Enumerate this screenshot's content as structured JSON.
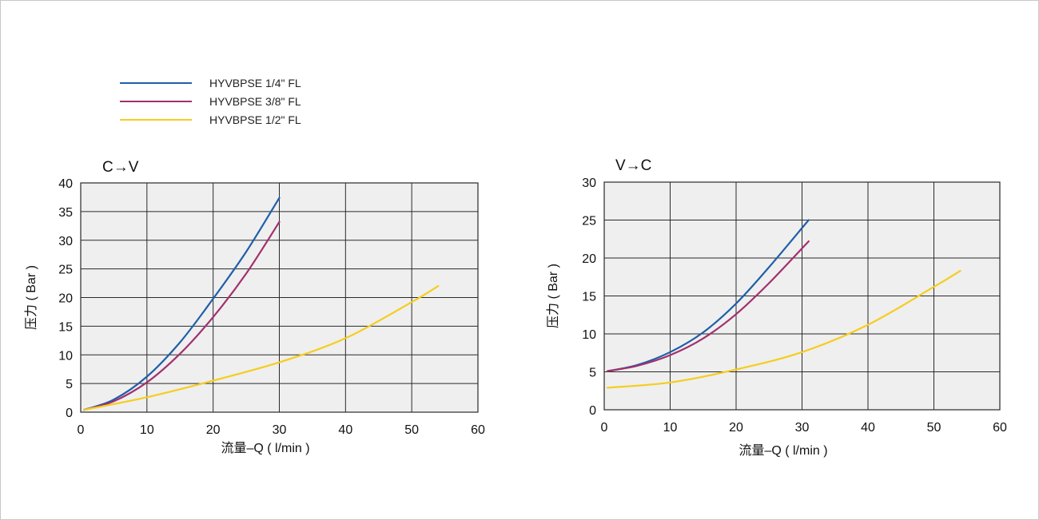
{
  "legend": [
    {
      "label": "HYVBPSE 1/4\" FL",
      "color": "#1f5fa8"
    },
    {
      "label": "HYVBPSE 3/8\" FL",
      "color": "#a2306e"
    },
    {
      "label": "HYVBPSE 1/2\" FL",
      "color": "#f5cd1e"
    }
  ],
  "chart_data": [
    {
      "type": "line",
      "title": "C→V",
      "xlabel": "流量–Q ( l/min )",
      "ylabel": "压力 ( Bar )",
      "xlim": [
        0,
        60
      ],
      "ylim": [
        0,
        40
      ],
      "x_ticks": [
        0,
        10,
        20,
        30,
        40,
        50,
        60
      ],
      "y_ticks": [
        0,
        5,
        10,
        15,
        20,
        25,
        30,
        35,
        40
      ],
      "grid": true,
      "series": [
        {
          "name": "HYVBPSE 1/4\" FL",
          "color": "#1f5fa8",
          "x": [
            0.5,
            5,
            10,
            15,
            20,
            25,
            30
          ],
          "y": [
            0.4,
            2.2,
            6.2,
            12.2,
            19.8,
            28.0,
            37.4
          ]
        },
        {
          "name": "HYVBPSE 3/8\" FL",
          "color": "#a2306e",
          "x": [
            0.5,
            5,
            10,
            15,
            20,
            25,
            30
          ],
          "y": [
            0.4,
            1.9,
            5.2,
            10.2,
            16.6,
            24.2,
            33.2
          ]
        },
        {
          "name": "HYVBPSE 1/2\" FL",
          "color": "#f5cd1e",
          "x": [
            0.5,
            10,
            20,
            30,
            40,
            50,
            54
          ],
          "y": [
            0.4,
            2.6,
            5.5,
            8.7,
            12.9,
            19.2,
            22.0
          ]
        }
      ]
    },
    {
      "type": "line",
      "title": "V→C",
      "xlabel": "流量–Q ( l/min )",
      "ylabel": "压力 ( Bar )",
      "xlim": [
        0,
        60
      ],
      "ylim": [
        0,
        30
      ],
      "x_ticks": [
        0,
        10,
        20,
        30,
        40,
        50,
        60
      ],
      "y_ticks": [
        0,
        5,
        10,
        15,
        20,
        25,
        30
      ],
      "grid": true,
      "series": [
        {
          "name": "HYVBPSE 1/4\" FL",
          "color": "#1f5fa8",
          "x": [
            0.5,
            5,
            10,
            15,
            20,
            25,
            31
          ],
          "y": [
            5.1,
            5.9,
            7.6,
            10.2,
            14.0,
            18.8,
            25.0
          ]
        },
        {
          "name": "HYVBPSE 3/8\" FL",
          "color": "#a2306e",
          "x": [
            0.5,
            5,
            10,
            15,
            20,
            25,
            31
          ],
          "y": [
            5.1,
            5.8,
            7.2,
            9.4,
            12.6,
            16.7,
            22.2
          ]
        },
        {
          "name": "HYVBPSE 1/2\" FL",
          "color": "#f5cd1e",
          "x": [
            0.5,
            10,
            20,
            30,
            40,
            50,
            54
          ],
          "y": [
            2.9,
            3.6,
            5.3,
            7.6,
            11.2,
            16.2,
            18.3
          ]
        }
      ]
    }
  ]
}
